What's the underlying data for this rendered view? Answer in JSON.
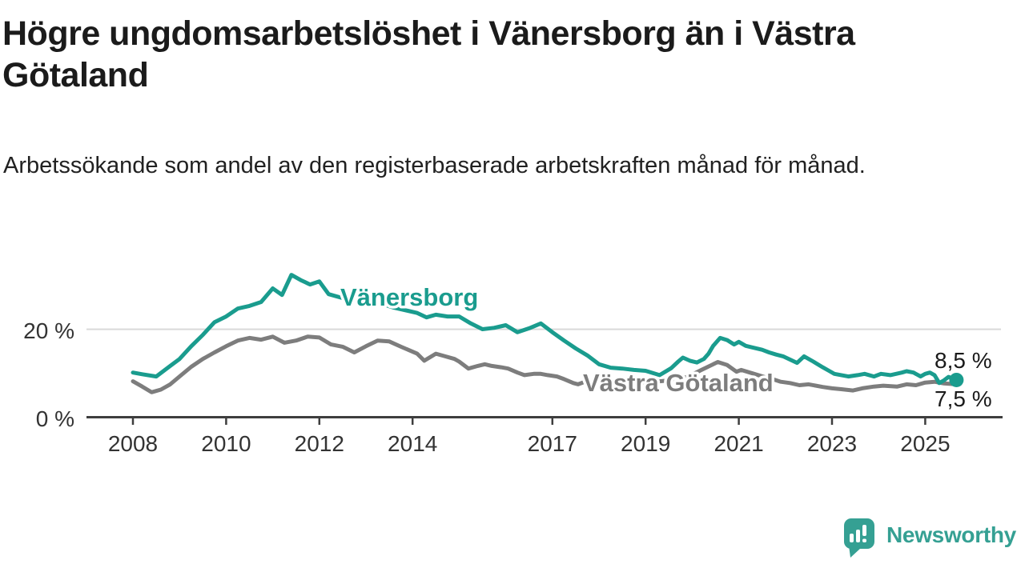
{
  "title": "Högre ungdomsarbetslöshet i Vänersborg än i Västra Götaland",
  "subtitle": "Arbetssökande som andel av den registerbaserade arbetskraften månad för månad.",
  "brand": {
    "name": "Newsworthy"
  },
  "colors": {
    "accent_teal": "#1a9c8e",
    "line_gray": "#7d7d7d",
    "grid": "#d9d9d9",
    "axis": "#3e3e3e",
    "tick_text": "#333333",
    "label_text": "#1a1a1a",
    "brand_teal": "#35a093",
    "background": "#ffffff"
  },
  "chart_data": {
    "type": "line",
    "title": "Högre ungdomsarbetslöshet i Vänersborg än i Västra Götaland",
    "subtitle": "Arbetssökande som andel av den registerbaserade arbetskraften månad för månad.",
    "xlabel": "",
    "ylabel": "",
    "unit": "%",
    "xlim": [
      2008,
      2025.9
    ],
    "ylim": [
      0,
      34
    ],
    "grid": "single horizontal gridline at 20 %",
    "grid_y_values": [
      20
    ],
    "legend": "direct line labels",
    "x_ticks": [
      2008,
      2010,
      2012,
      2014,
      2017,
      2019,
      2021,
      2023,
      2025
    ],
    "y_ticks": [
      {
        "value": 20,
        "label": "20 %"
      },
      {
        "value": 0,
        "label": "0 %"
      }
    ],
    "series": [
      {
        "name": "Vänersborg",
        "color": "#1a9c8e",
        "end_label": "8,5 %",
        "end_value": 8.5,
        "end_marker": "dot",
        "points": [
          [
            2008.0,
            10.2
          ],
          [
            2008.2,
            9.8
          ],
          [
            2008.5,
            9.3
          ],
          [
            2008.8,
            11.7
          ],
          [
            2009.0,
            13.3
          ],
          [
            2009.25,
            16.2
          ],
          [
            2009.5,
            18.8
          ],
          [
            2009.75,
            21.7
          ],
          [
            2010.0,
            23.0
          ],
          [
            2010.25,
            24.8
          ],
          [
            2010.5,
            25.4
          ],
          [
            2010.75,
            26.3
          ],
          [
            2011.0,
            29.4
          ],
          [
            2011.2,
            27.9
          ],
          [
            2011.4,
            32.5
          ],
          [
            2011.6,
            31.3
          ],
          [
            2011.8,
            30.3
          ],
          [
            2012.0,
            31.0
          ],
          [
            2012.2,
            28.1
          ],
          [
            2012.5,
            27.2
          ],
          [
            2012.8,
            28.3
          ],
          [
            2013.0,
            27.0
          ],
          [
            2013.3,
            26.0
          ],
          [
            2013.6,
            25.0
          ],
          [
            2013.9,
            24.3
          ],
          [
            2014.1,
            23.8
          ],
          [
            2014.3,
            22.8
          ],
          [
            2014.5,
            23.4
          ],
          [
            2014.75,
            23.0
          ],
          [
            2015.0,
            23.0
          ],
          [
            2015.25,
            21.4
          ],
          [
            2015.5,
            20.1
          ],
          [
            2015.75,
            20.4
          ],
          [
            2016.0,
            21.0
          ],
          [
            2016.25,
            19.4
          ],
          [
            2016.5,
            20.3
          ],
          [
            2016.75,
            21.4
          ],
          [
            2017.0,
            19.4
          ],
          [
            2017.25,
            17.5
          ],
          [
            2017.5,
            15.7
          ],
          [
            2017.75,
            14.1
          ],
          [
            2018.0,
            12.1
          ],
          [
            2018.25,
            11.3
          ],
          [
            2018.5,
            11.1
          ],
          [
            2018.75,
            10.8
          ],
          [
            2019.0,
            10.6
          ],
          [
            2019.3,
            9.6
          ],
          [
            2019.55,
            11.2
          ],
          [
            2019.7,
            12.7
          ],
          [
            2019.8,
            13.6
          ],
          [
            2019.95,
            12.9
          ],
          [
            2020.1,
            12.5
          ],
          [
            2020.25,
            13.3
          ],
          [
            2020.35,
            14.5
          ],
          [
            2020.45,
            16.3
          ],
          [
            2020.6,
            18.1
          ],
          [
            2020.75,
            17.6
          ],
          [
            2020.9,
            16.6
          ],
          [
            2021.0,
            17.2
          ],
          [
            2021.15,
            16.3
          ],
          [
            2021.3,
            15.9
          ],
          [
            2021.5,
            15.4
          ],
          [
            2021.65,
            14.8
          ],
          [
            2021.8,
            14.3
          ],
          [
            2021.95,
            13.9
          ],
          [
            2022.25,
            12.4
          ],
          [
            2022.4,
            13.9
          ],
          [
            2022.6,
            12.7
          ],
          [
            2022.8,
            11.4
          ],
          [
            2022.95,
            10.5
          ],
          [
            2023.05,
            9.9
          ],
          [
            2023.2,
            9.6
          ],
          [
            2023.35,
            9.3
          ],
          [
            2023.55,
            9.6
          ],
          [
            2023.7,
            9.9
          ],
          [
            2023.9,
            9.3
          ],
          [
            2024.05,
            9.9
          ],
          [
            2024.25,
            9.6
          ],
          [
            2024.5,
            10.2
          ],
          [
            2024.6,
            10.5
          ],
          [
            2024.75,
            10.2
          ],
          [
            2024.9,
            9.3
          ],
          [
            2025.0,
            9.9
          ],
          [
            2025.1,
            10.2
          ],
          [
            2025.2,
            9.6
          ],
          [
            2025.3,
            7.8
          ],
          [
            2025.4,
            8.4
          ],
          [
            2025.5,
            9.2
          ],
          [
            2025.67,
            8.5
          ]
        ]
      },
      {
        "name": "Västra Götaland",
        "color": "#7d7d7d",
        "end_label": "7,5 %",
        "end_value": 7.5,
        "end_marker": "none",
        "points": [
          [
            2008.0,
            8.2
          ],
          [
            2008.2,
            7.0
          ],
          [
            2008.4,
            5.7
          ],
          [
            2008.6,
            6.3
          ],
          [
            2008.8,
            7.5
          ],
          [
            2009.0,
            9.3
          ],
          [
            2009.25,
            11.5
          ],
          [
            2009.5,
            13.3
          ],
          [
            2009.75,
            14.8
          ],
          [
            2010.0,
            16.2
          ],
          [
            2010.25,
            17.5
          ],
          [
            2010.5,
            18.1
          ],
          [
            2010.75,
            17.7
          ],
          [
            2011.0,
            18.4
          ],
          [
            2011.25,
            17.0
          ],
          [
            2011.5,
            17.5
          ],
          [
            2011.75,
            18.4
          ],
          [
            2012.0,
            18.2
          ],
          [
            2012.25,
            16.6
          ],
          [
            2012.5,
            16.1
          ],
          [
            2012.75,
            14.8
          ],
          [
            2013.0,
            16.2
          ],
          [
            2013.25,
            17.5
          ],
          [
            2013.5,
            17.3
          ],
          [
            2013.75,
            16.1
          ],
          [
            2014.1,
            14.5
          ],
          [
            2014.25,
            12.9
          ],
          [
            2014.5,
            14.5
          ],
          [
            2014.7,
            13.9
          ],
          [
            2014.9,
            13.3
          ],
          [
            2015.0,
            12.7
          ],
          [
            2015.2,
            11.1
          ],
          [
            2015.4,
            11.7
          ],
          [
            2015.55,
            12.1
          ],
          [
            2015.7,
            11.7
          ],
          [
            2015.9,
            11.4
          ],
          [
            2016.05,
            11.1
          ],
          [
            2016.25,
            10.2
          ],
          [
            2016.4,
            9.6
          ],
          [
            2016.6,
            9.9
          ],
          [
            2016.75,
            9.9
          ],
          [
            2016.9,
            9.6
          ],
          [
            2017.1,
            9.3
          ],
          [
            2017.25,
            8.7
          ],
          [
            2017.45,
            7.8
          ],
          [
            2017.55,
            7.5
          ],
          [
            2017.7,
            8.1
          ],
          [
            2018.0,
            7.6
          ],
          [
            2018.3,
            7.9
          ],
          [
            2018.6,
            7.7
          ],
          [
            2019.0,
            8.0
          ],
          [
            2019.3,
            8.2
          ],
          [
            2019.6,
            8.5
          ],
          [
            2019.9,
            9.2
          ],
          [
            2020.2,
            10.8
          ],
          [
            2020.55,
            12.6
          ],
          [
            2020.75,
            11.9
          ],
          [
            2020.95,
            10.4
          ],
          [
            2021.05,
            10.8
          ],
          [
            2021.3,
            10.0
          ],
          [
            2021.6,
            9.0
          ],
          [
            2021.75,
            8.6
          ],
          [
            2021.9,
            8.1
          ],
          [
            2022.1,
            7.8
          ],
          [
            2022.3,
            7.3
          ],
          [
            2022.5,
            7.5
          ],
          [
            2022.8,
            6.9
          ],
          [
            2023.0,
            6.6
          ],
          [
            2023.2,
            6.4
          ],
          [
            2023.45,
            6.1
          ],
          [
            2023.65,
            6.6
          ],
          [
            2023.9,
            7.0
          ],
          [
            2024.1,
            7.2
          ],
          [
            2024.4,
            7.0
          ],
          [
            2024.6,
            7.5
          ],
          [
            2024.8,
            7.3
          ],
          [
            2025.0,
            7.9
          ],
          [
            2025.2,
            8.1
          ],
          [
            2025.4,
            7.7
          ],
          [
            2025.67,
            7.5
          ]
        ]
      }
    ]
  }
}
